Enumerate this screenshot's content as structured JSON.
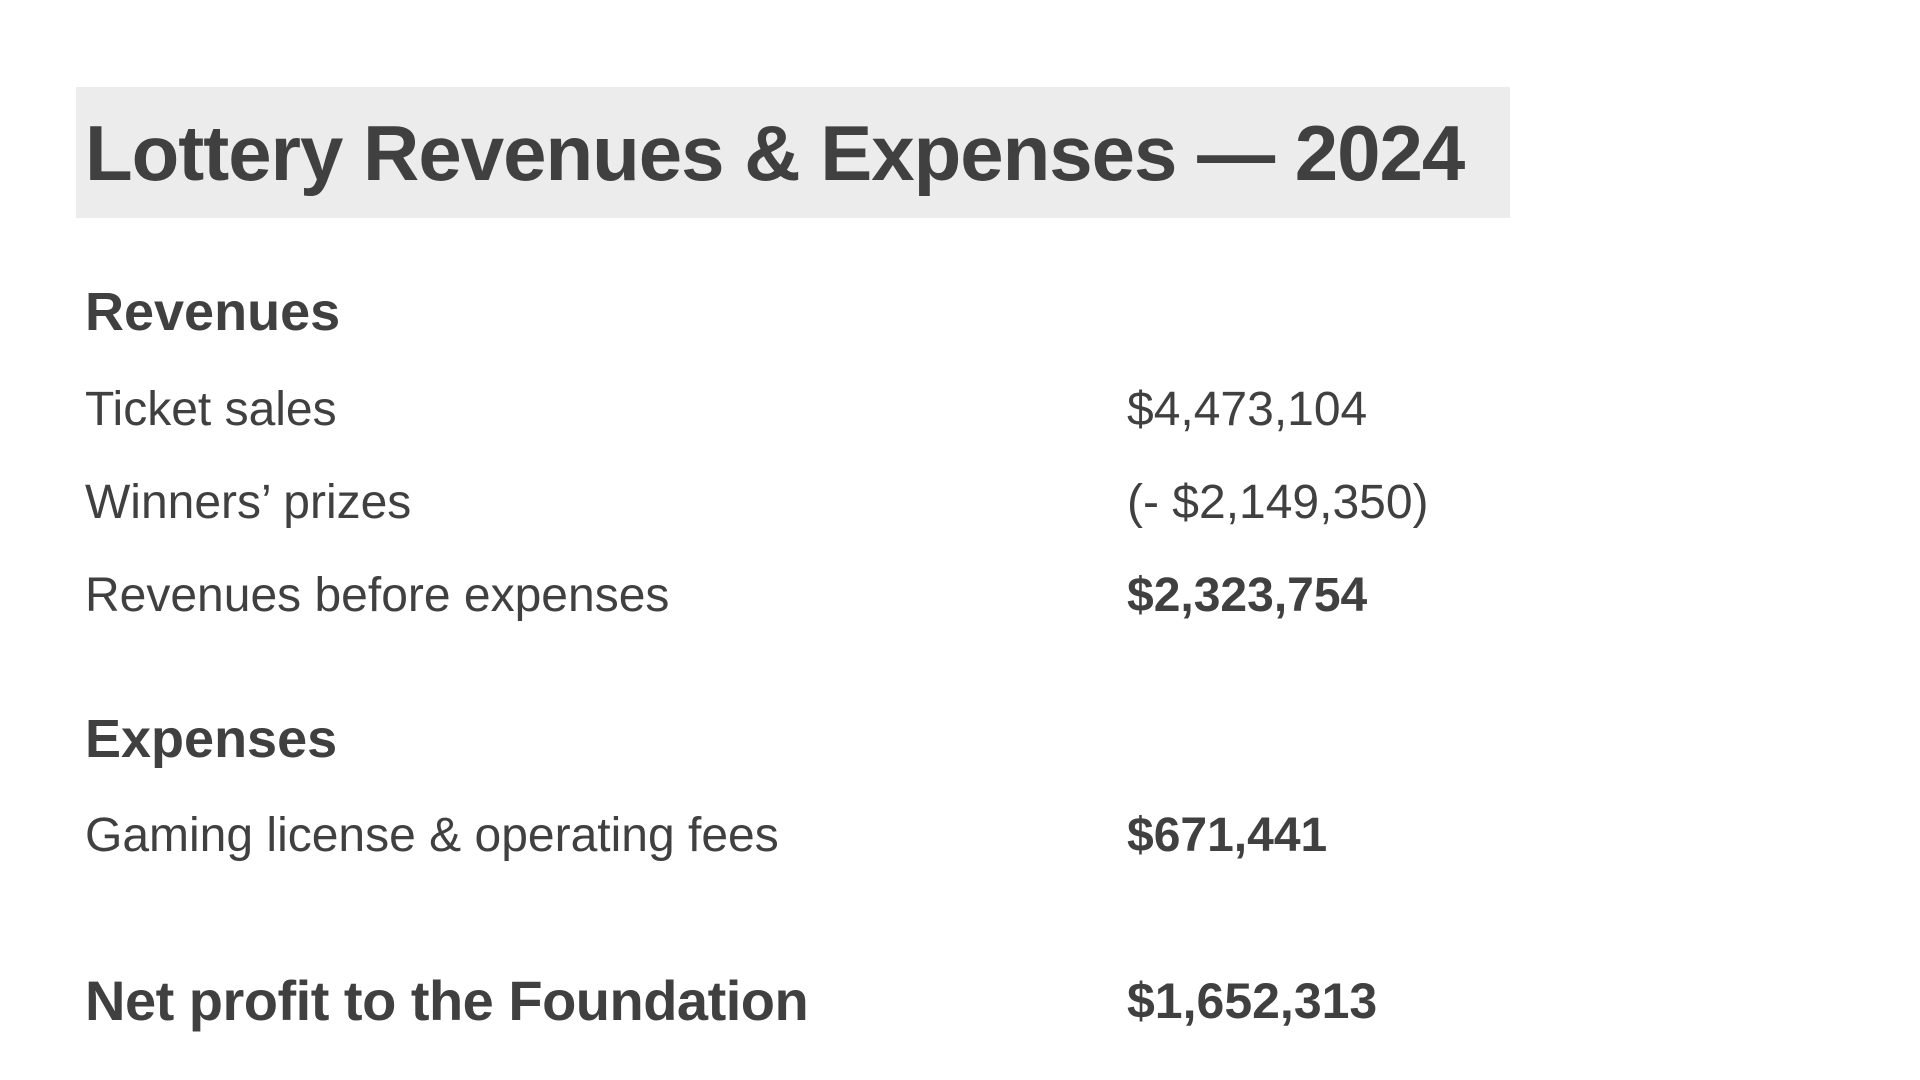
{
  "title": "Lottery Revenues & Expenses — 2024",
  "revenues": {
    "heading": "Revenues",
    "rows": [
      {
        "label": "Ticket sales",
        "value": "$4,473,104"
      },
      {
        "label": "Winners’ prizes",
        "value": "(- $2,149,350)"
      },
      {
        "label": "Revenues before expenses",
        "value": "$2,323,754"
      }
    ]
  },
  "expenses": {
    "heading": "Expenses",
    "rows": [
      {
        "label": "Gaming license & operating fees",
        "value": "$671,441"
      }
    ]
  },
  "net": {
    "label": "Net profit to the Foundation",
    "value": "$1,652,313"
  }
}
